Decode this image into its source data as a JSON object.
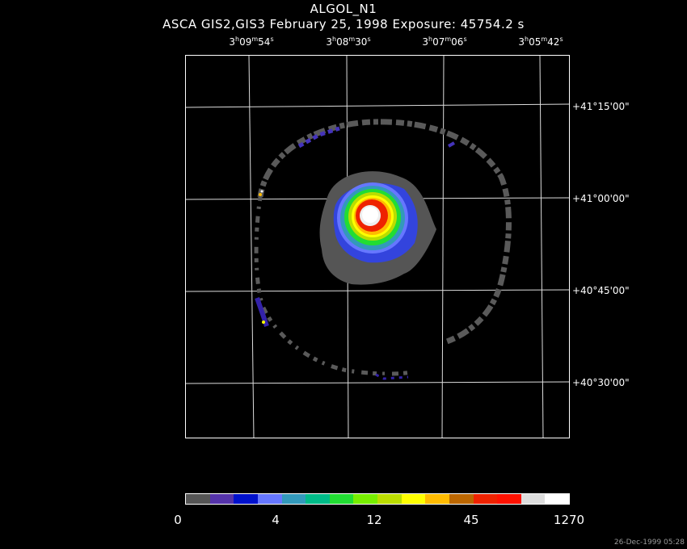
{
  "header": {
    "object": "ALGOL_N1",
    "subtitle": "ASCA GIS2,GIS3 February 25, 1998 Exposure: 45754.2 s"
  },
  "ra_ticks": [
    {
      "h": "3",
      "m": "09",
      "s": "54"
    },
    {
      "h": "3",
      "m": "08",
      "s": "30"
    },
    {
      "h": "3",
      "m": "07",
      "s": "06"
    },
    {
      "h": "3",
      "m": "05",
      "s": "42"
    }
  ],
  "dec_ticks": [
    "+41°15'00\"",
    "+41°00'00\"",
    "+40°45'00\"",
    "+40°30'00\""
  ],
  "colorbar": {
    "labels": [
      "0",
      "4",
      "12",
      "45",
      "1270"
    ],
    "colors": [
      "#555555",
      "#5533aa",
      "#0011cc",
      "#6677ff",
      "#3399bb",
      "#00bb88",
      "#22dd33",
      "#77ee00",
      "#bbdd00",
      "#ffff00",
      "#ffbb00",
      "#bb6600",
      "#ee2200",
      "#ff1100",
      "#dddddd",
      "#ffffff"
    ]
  },
  "footer": "26-Dec-1999 05:28"
}
